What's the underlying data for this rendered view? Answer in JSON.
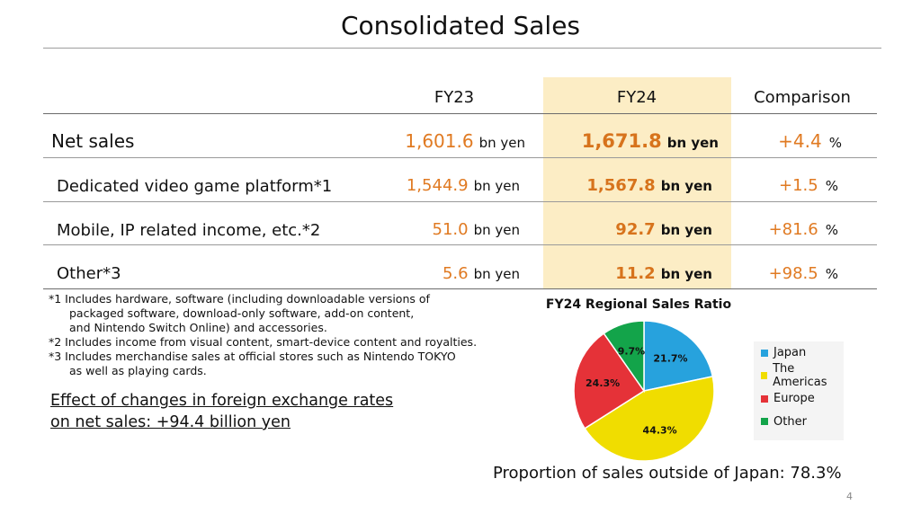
{
  "title": "Consolidated Sales",
  "table": {
    "headers": {
      "fy23": "FY23",
      "fy24": "FY24",
      "comparison": "Comparison"
    },
    "rows": [
      {
        "label": "Net sales",
        "fy23": "1,601.6",
        "fy23_unit": "bn yen",
        "fy24": "1,671.8",
        "fy24_unit": "bn yen",
        "comparison": "+4.4",
        "comparison_unit": "%"
      },
      {
        "label": "Dedicated video game platform*1",
        "fy23": "1,544.9",
        "fy23_unit": "bn yen",
        "fy24": "1,567.8",
        "fy24_unit": "bn yen",
        "comparison": "+1.5",
        "comparison_unit": "%"
      },
      {
        "label": "Mobile, IP related income, etc.*2",
        "fy23": "51.0",
        "fy23_unit": "bn yen",
        "fy24": "92.7",
        "fy24_unit": "bn yen",
        "comparison": "+81.6",
        "comparison_unit": "%"
      },
      {
        "label": "Other*3",
        "fy23": "5.6",
        "fy23_unit": "bn yen",
        "fy24": "11.2",
        "fy24_unit": "bn yen",
        "comparison": "+98.5",
        "comparison_unit": "%"
      }
    ]
  },
  "notes": [
    "*1 Includes hardware, software (including downloadable versions of",
    "packaged software, download-only software, add-on content,",
    "and Nintendo Switch Online) and accessories.",
    "*2 Includes income from visual content, smart-device content and royalties.",
    "*3 Includes merchandise sales at official stores such as Nintendo TOKYO",
    "as well as playing cards."
  ],
  "fx_effect": {
    "line1": "Effect of changes in foreign exchange rates",
    "line2": "on net sales: +94.4 billion yen"
  },
  "chart_data": {
    "type": "pie",
    "title": "FY24 Regional Sales Ratio",
    "labels": [
      "Japan",
      "The Americas",
      "Europe",
      "Other"
    ],
    "values": [
      21.7,
      44.3,
      24.3,
      9.7
    ],
    "value_labels": [
      "21.7%",
      "44.3%",
      "24.3%",
      "9.7%"
    ],
    "colors": [
      "#27a2dd",
      "#f0dd00",
      "#e53238",
      "#13a44a"
    ],
    "legend_position": "right"
  },
  "proportion_text": "Proportion of sales outside of Japan: 78.3%",
  "page_number": "4"
}
